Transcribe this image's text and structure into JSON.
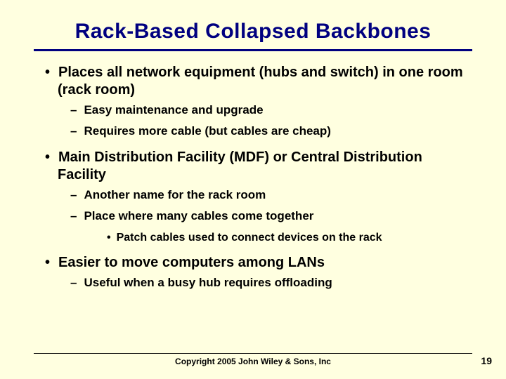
{
  "background_color": "#ffffe0",
  "title_color": "#000080",
  "text_color": "#000000",
  "title": {
    "text": "Rack-Based Collapsed Backbones",
    "fontsize": 30,
    "underline_color": "#000080",
    "underline_width": 3
  },
  "bullets": [
    {
      "level": 1,
      "text": "Places all network equipment (hubs and switch) in one room (rack room)"
    },
    {
      "level": 2,
      "text": "Easy maintenance and upgrade"
    },
    {
      "level": 2,
      "text": "Requires more cable (but cables are cheap)"
    },
    {
      "level": 1,
      "text": "Main Distribution Facility (MDF) or Central Distribution Facility"
    },
    {
      "level": 2,
      "text": "Another name for the rack room"
    },
    {
      "level": 2,
      "text": "Place where many cables come together"
    },
    {
      "level": 3,
      "text": "Patch cables used to connect devices on the rack"
    },
    {
      "level": 1,
      "text": "Easier to move computers among LANs"
    },
    {
      "level": 2,
      "text": "Useful when a busy hub requires offloading"
    }
  ],
  "footer": {
    "copyright": "Copyright 2005 John Wiley & Sons, Inc",
    "page_number": "19"
  },
  "fontsizes": {
    "level1": 20,
    "level2": 17,
    "level3": 16,
    "copyright": 12,
    "page_number": 14
  }
}
